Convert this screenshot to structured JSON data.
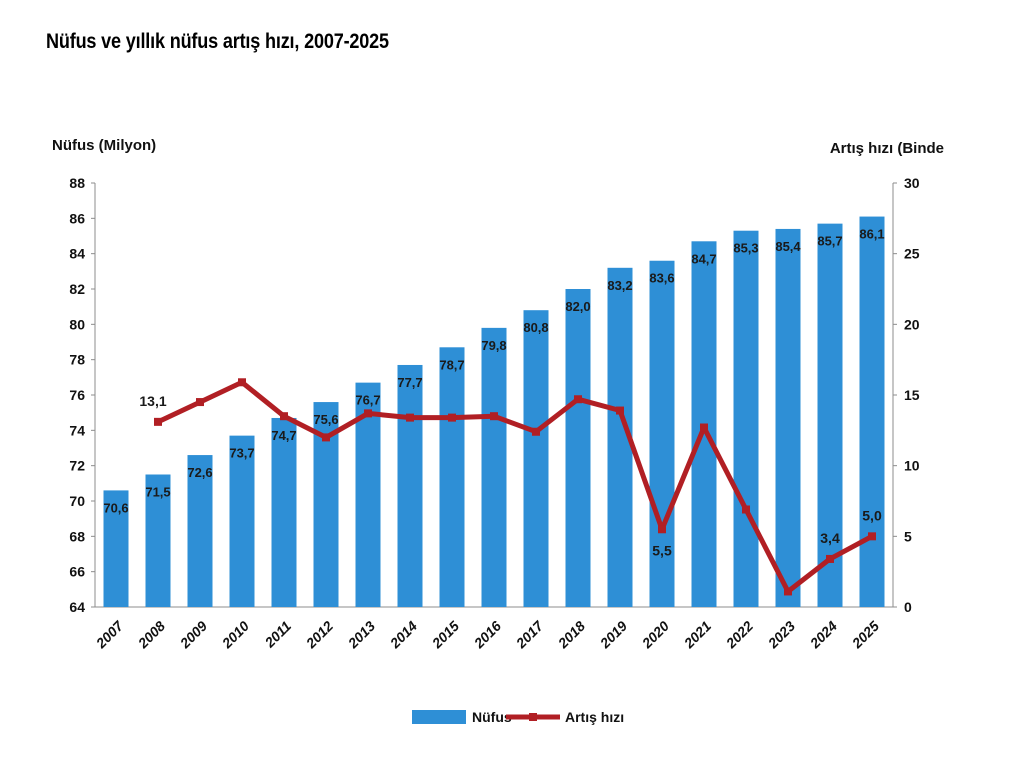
{
  "chart_data": {
    "type": "bar",
    "title": "Nüfus ve yıllık nüfus artış hızı, 2007-2025",
    "categories": [
      "2007",
      "2008",
      "2009",
      "2010",
      "2011",
      "2012",
      "2013",
      "2014",
      "2015",
      "2016",
      "2017",
      "2018",
      "2019",
      "2020",
      "2021",
      "2022",
      "2023",
      "2024",
      "2025"
    ],
    "y_left": {
      "label": "Nüfus (Milyon)",
      "min": 64,
      "max": 88,
      "step": 2
    },
    "y_right": {
      "label": "Artış hızı (Binde",
      "min": 0,
      "max": 30,
      "step": 5
    },
    "series": [
      {
        "name": "Nüfus",
        "type": "bar",
        "axis": "left",
        "color": "#2e8fd6",
        "values": [
          70.6,
          71.5,
          72.6,
          73.7,
          74.7,
          75.6,
          76.7,
          77.7,
          78.7,
          79.8,
          80.8,
          82.0,
          83.2,
          83.6,
          84.7,
          85.3,
          85.4,
          85.7,
          86.1
        ],
        "labels": [
          "70,6",
          "71,5",
          "72,6",
          "73,7",
          "74,7",
          "75,6",
          "76,7",
          "77,7",
          "78,7",
          "79,8",
          "80,8",
          "82,0",
          "83,2",
          "83,6",
          "84,7",
          "85,3",
          "85,4",
          "85,7",
          "86,1"
        ]
      },
      {
        "name": "Artış hızı",
        "type": "line",
        "axis": "right",
        "color": "#b11f24",
        "values": [
          null,
          13.1,
          14.5,
          15.9,
          13.5,
          12.0,
          13.7,
          13.4,
          13.4,
          13.5,
          12.4,
          14.7,
          13.9,
          5.5,
          12.7,
          6.9,
          1.1,
          3.4,
          5.0
        ],
        "labels": [
          null,
          "13,1",
          null,
          null,
          null,
          null,
          null,
          null,
          null,
          null,
          null,
          null,
          null,
          "5,5",
          null,
          null,
          null,
          "3,4",
          "5,0"
        ]
      }
    ],
    "legend": {
      "position": "bottom"
    },
    "grid": false
  }
}
